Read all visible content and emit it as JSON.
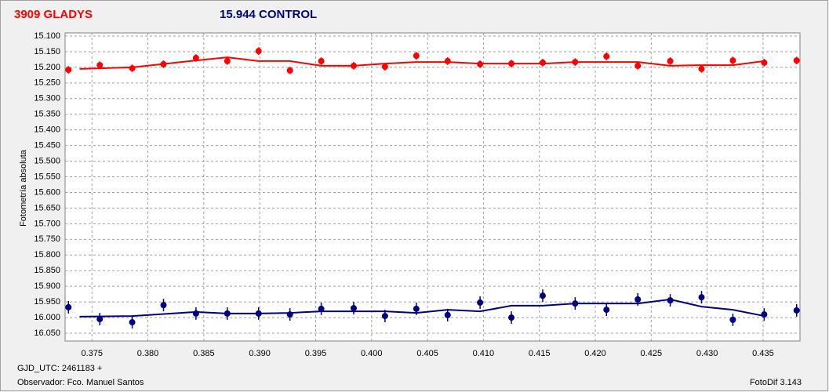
{
  "chart_data": {
    "type": "scatter",
    "y_label": "Fotometría absoluta",
    "footer": [
      "GJD_UTC: 2461183 +",
      "Observador: Fco. Manuel Santos"
    ],
    "software": "FotoDif 3.143",
    "xlim": [
      0.3726,
      0.4383
    ],
    "ylim": [
      16.075,
      15.09
    ],
    "grid": true,
    "xticks": [
      {
        "value": 0.375,
        "label": "0.375"
      },
      {
        "value": 0.38,
        "label": "0.380"
      },
      {
        "value": 0.385,
        "label": "0.385"
      },
      {
        "value": 0.39,
        "label": "0.390"
      },
      {
        "value": 0.395,
        "label": "0.395"
      },
      {
        "value": 0.4,
        "label": "0.400"
      },
      {
        "value": 0.405,
        "label": "0.405"
      },
      {
        "value": 0.41,
        "label": "0.410"
      },
      {
        "value": 0.415,
        "label": "0.415"
      },
      {
        "value": 0.42,
        "label": "0.420"
      },
      {
        "value": 0.425,
        "label": "0.425"
      },
      {
        "value": 0.43,
        "label": "0.430"
      },
      {
        "value": 0.435,
        "label": "0.435"
      }
    ],
    "yticks": [
      {
        "value": 15.1,
        "label": "15.100"
      },
      {
        "value": 15.15,
        "label": "15.150"
      },
      {
        "value": 15.2,
        "label": "15.200"
      },
      {
        "value": 15.25,
        "label": "15.250"
      },
      {
        "value": 15.3,
        "label": "15.300"
      },
      {
        "value": 15.35,
        "label": "15.350"
      },
      {
        "value": 15.4,
        "label": "15.400"
      },
      {
        "value": 15.45,
        "label": "15.450"
      },
      {
        "value": 15.5,
        "label": "15.500"
      },
      {
        "value": 15.55,
        "label": "15.550"
      },
      {
        "value": 15.6,
        "label": "15.600"
      },
      {
        "value": 15.65,
        "label": "15.650"
      },
      {
        "value": 15.7,
        "label": "15.700"
      },
      {
        "value": 15.75,
        "label": "15.750"
      },
      {
        "value": 15.8,
        "label": "15.800"
      },
      {
        "value": 15.85,
        "label": "15.850"
      },
      {
        "value": 15.9,
        "label": "15.900"
      },
      {
        "value": 15.95,
        "label": "15.950"
      },
      {
        "value": 16.0,
        "label": "16.000"
      },
      {
        "value": 16.05,
        "label": "16.050"
      }
    ],
    "series": [
      {
        "name": "3909 GLADYS",
        "color": "#ff0000",
        "error": 0.012,
        "x": [
          0.3729,
          0.3757,
          0.3786,
          0.3814,
          0.3843,
          0.3871,
          0.3899,
          0.3927,
          0.3955,
          0.3984,
          0.4012,
          0.404,
          0.4068,
          0.4097,
          0.4125,
          0.4153,
          0.4182,
          0.421,
          0.4238,
          0.4267,
          0.4295,
          0.4323,
          0.4351,
          0.438
        ],
        "values": [
          15.208,
          15.193,
          15.203,
          15.19,
          15.17,
          15.18,
          15.148,
          15.21,
          15.18,
          15.195,
          15.198,
          15.163,
          15.18,
          15.19,
          15.188,
          15.185,
          15.183,
          15.165,
          15.195,
          15.18,
          15.205,
          15.178,
          15.185,
          15.178
        ],
        "fit_x": [
          0.3739,
          0.3786,
          0.3843,
          0.3871,
          0.3899,
          0.3927,
          0.3955,
          0.3984,
          0.4012,
          0.404,
          0.4068,
          0.4097,
          0.4125,
          0.4153,
          0.4182,
          0.421,
          0.4238,
          0.4267,
          0.4295,
          0.4323,
          0.4351
        ],
        "fit_values": [
          15.205,
          15.2,
          15.178,
          15.168,
          15.18,
          15.18,
          15.195,
          15.195,
          15.188,
          15.183,
          15.183,
          15.188,
          15.188,
          15.188,
          15.183,
          15.183,
          15.183,
          15.195,
          15.193,
          15.193,
          15.18
        ]
      },
      {
        "name": "15.944 CONTROL",
        "color": "#000080",
        "error": 0.02,
        "x": [
          0.3729,
          0.3757,
          0.3786,
          0.3814,
          0.3843,
          0.3871,
          0.3899,
          0.3927,
          0.3955,
          0.3984,
          0.4012,
          0.404,
          0.4068,
          0.4097,
          0.4125,
          0.4153,
          0.4182,
          0.421,
          0.4238,
          0.4267,
          0.4295,
          0.4323,
          0.4351,
          0.438
        ],
        "values": [
          15.967,
          16.005,
          16.015,
          15.96,
          15.987,
          15.987,
          15.987,
          15.99,
          15.972,
          15.97,
          15.995,
          15.972,
          15.992,
          15.952,
          16.0,
          15.93,
          15.955,
          15.975,
          15.942,
          15.945,
          15.935,
          16.007,
          15.99,
          15.977
        ],
        "fit_x": [
          0.3739,
          0.3786,
          0.3843,
          0.3871,
          0.3899,
          0.3927,
          0.3955,
          0.3984,
          0.4012,
          0.404,
          0.4068,
          0.4097,
          0.4125,
          0.4153,
          0.4182,
          0.421,
          0.4238,
          0.4267,
          0.4295,
          0.4323,
          0.4351
        ],
        "fit_values": [
          15.997,
          15.995,
          15.982,
          15.987,
          15.987,
          15.985,
          15.98,
          15.98,
          15.98,
          15.985,
          15.975,
          15.98,
          15.962,
          15.962,
          15.955,
          15.955,
          15.955,
          15.942,
          15.965,
          15.975,
          15.995
        ]
      }
    ]
  }
}
